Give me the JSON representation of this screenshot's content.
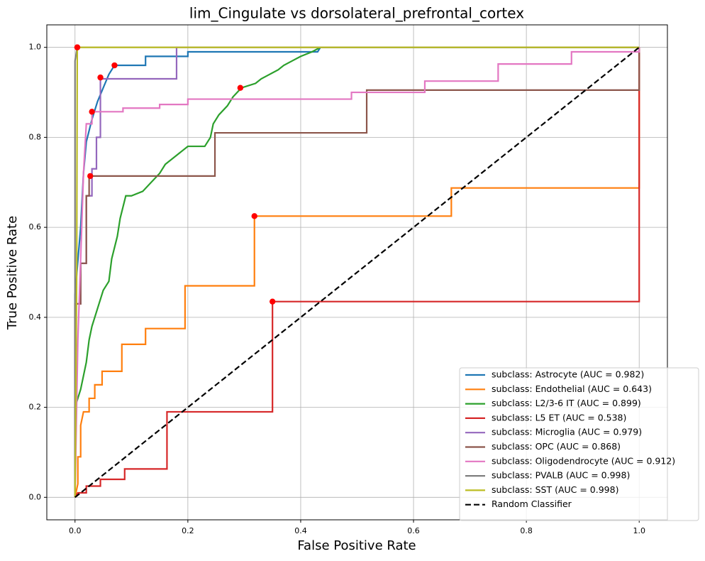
{
  "chart_data": {
    "type": "line",
    "title": "lim_Cingulate vs dorsolateral_prefrontal_cortex",
    "x_label": "False Positive Rate",
    "y_label": "True Positive Rate",
    "xlim": [
      -0.05,
      1.05
    ],
    "ylim": [
      -0.05,
      1.05
    ],
    "xticks": [
      {
        "value": 0,
        "label": "0.0"
      },
      {
        "value": 0.2,
        "label": "0.2"
      },
      {
        "value": 0.4,
        "label": "0.4"
      },
      {
        "value": 0.6,
        "label": "0.6"
      },
      {
        "value": 0.8,
        "label": "0.8"
      },
      {
        "value": 1,
        "label": "1.0"
      }
    ],
    "yticks": [
      {
        "value": 0,
        "label": "0.0"
      },
      {
        "value": 0.2,
        "label": "0.2"
      },
      {
        "value": 0.4,
        "label": "0.4"
      },
      {
        "value": 0.6,
        "label": "0.6"
      },
      {
        "value": 0.8,
        "label": "0.8"
      },
      {
        "value": 1,
        "label": "1.0"
      }
    ],
    "grid": true,
    "legend": "lower right",
    "series": [
      {
        "name": "subclass: Astrocyte (AUC = 0.982)",
        "color": "#1f77b4",
        "x": [
          0,
          0,
          0.01,
          0.015,
          0.02,
          0.03,
          0.04,
          0.05,
          0.06,
          0.07,
          0.125,
          0.125,
          0.2,
          0.2,
          0.43,
          0.435,
          1
        ],
        "values": [
          0,
          0.45,
          0.6,
          0.72,
          0.79,
          0.84,
          0.88,
          0.91,
          0.94,
          0.96,
          0.96,
          0.98,
          0.98,
          0.99,
          0.99,
          1,
          1
        ]
      },
      {
        "name": "subclass: Endothelial (AUC = 0.643)",
        "color": "#ff7f0e",
        "x": [
          0,
          0.005,
          0.005,
          0.01,
          0.01,
          0.015,
          0.025,
          0.025,
          0.035,
          0.035,
          0.048,
          0.048,
          0.083,
          0.083,
          0.125,
          0.125,
          0.195,
          0.195,
          0.318,
          0.318,
          0.667,
          0.667,
          1,
          1
        ],
        "values": [
          0,
          0.03,
          0.09,
          0.09,
          0.16,
          0.19,
          0.19,
          0.22,
          0.22,
          0.25,
          0.25,
          0.28,
          0.28,
          0.34,
          0.34,
          0.375,
          0.375,
          0.47,
          0.47,
          0.625,
          0.625,
          0.6875,
          0.6875,
          1
        ]
      },
      {
        "name": "subclass: L2/3-6 IT (AUC = 0.899)",
        "color": "#2ca02c",
        "x": [
          0,
          0,
          0.01,
          0.02,
          0.025,
          0.03,
          0.04,
          0.05,
          0.06,
          0.065,
          0.075,
          0.08,
          0.09,
          0.1,
          0.12,
          0.135,
          0.15,
          0.16,
          0.18,
          0.2,
          0.23,
          0.24,
          0.245,
          0.255,
          0.27,
          0.28,
          0.295,
          0.32,
          0.33,
          0.345,
          0.36,
          0.37,
          0.385,
          0.4,
          0.42,
          0.435,
          1
        ],
        "values": [
          0,
          0.2,
          0.24,
          0.3,
          0.35,
          0.38,
          0.42,
          0.46,
          0.48,
          0.53,
          0.58,
          0.62,
          0.67,
          0.67,
          0.68,
          0.7,
          0.72,
          0.74,
          0.76,
          0.78,
          0.78,
          0.8,
          0.83,
          0.85,
          0.87,
          0.89,
          0.91,
          0.92,
          0.93,
          0.94,
          0.95,
          0.96,
          0.97,
          0.98,
          0.99,
          1,
          1
        ]
      },
      {
        "name": "subclass: L5 ET (AUC = 0.538)",
        "color": "#d62728",
        "x": [
          0,
          0.005,
          0.02,
          0.02,
          0.045,
          0.045,
          0.088,
          0.088,
          0.163,
          0.163,
          0.35,
          0.35,
          1,
          1
        ],
        "values": [
          0,
          0.01,
          0.01,
          0.025,
          0.025,
          0.04,
          0.04,
          0.063,
          0.063,
          0.19,
          0.19,
          0.435,
          0.435,
          1
        ]
      },
      {
        "name": "subclass: Microglia (AUC = 0.979)",
        "color": "#9467bd",
        "x": [
          0,
          0,
          0.01,
          0.01,
          0.02,
          0.02,
          0.03,
          0.03,
          0.038,
          0.038,
          0.045,
          0.045,
          0.18,
          0.18,
          1
        ],
        "values": [
          0,
          0.43,
          0.43,
          0.52,
          0.52,
          0.67,
          0.67,
          0.73,
          0.73,
          0.8,
          0.8,
          0.93,
          0.93,
          1,
          1
        ]
      },
      {
        "name": "subclass: OPC (AUC = 0.868)",
        "color": "#8c564b",
        "x": [
          0,
          0,
          0.01,
          0.01,
          0.02,
          0.02,
          0.025,
          0.025,
          0.248,
          0.248,
          0.517,
          0.517,
          1,
          1
        ],
        "values": [
          0,
          0.43,
          0.43,
          0.52,
          0.52,
          0.67,
          0.67,
          0.714,
          0.714,
          0.81,
          0.81,
          0.905,
          0.905,
          1
        ]
      },
      {
        "name": "subclass: Oligodendrocyte (AUC = 0.912)",
        "color": "#e377c2",
        "x": [
          0,
          0.005,
          0.01,
          0.015,
          0.02,
          0.03,
          0.03,
          0.085,
          0.085,
          0.15,
          0.15,
          0.2,
          0.2,
          0.49,
          0.49,
          0.62,
          0.62,
          0.75,
          0.75,
          0.88,
          0.88,
          1,
          1
        ],
        "values": [
          0,
          0.35,
          0.53,
          0.72,
          0.83,
          0.83,
          0.857,
          0.857,
          0.865,
          0.865,
          0.873,
          0.873,
          0.885,
          0.885,
          0.9,
          0.9,
          0.925,
          0.925,
          0.963,
          0.963,
          0.99,
          0.99,
          1
        ]
      },
      {
        "name": "subclass: PVALB (AUC = 0.998)",
        "color": "#7f7f7f",
        "x": [
          0,
          0,
          0.004,
          1
        ],
        "values": [
          0,
          0.97,
          1,
          1
        ]
      },
      {
        "name": "subclass: SST (AUC = 0.998)",
        "color": "#bcbd22",
        "x": [
          0,
          0.003,
          0.004,
          1
        ],
        "values": [
          0,
          0.5,
          1,
          1
        ]
      },
      {
        "name": "Random Classifier",
        "color": "#000000",
        "dashed": true,
        "x": [
          0,
          1
        ],
        "values": [
          0,
          1
        ]
      }
    ],
    "points": {
      "color": "#ff0000",
      "x": [
        0.07,
        0.318,
        0.293,
        0.35,
        0.045,
        0.027,
        0.03,
        0.004,
        0.004
      ],
      "values": [
        0.96,
        0.625,
        0.91,
        0.435,
        0.933,
        0.714,
        0.857,
        1,
        1
      ]
    }
  }
}
